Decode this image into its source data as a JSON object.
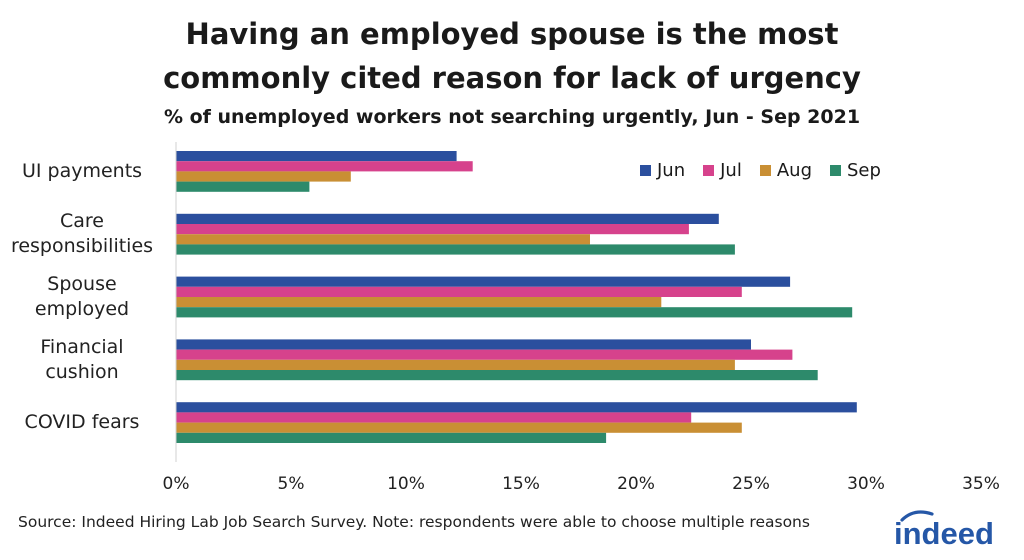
{
  "title_line1": "Having an employed spouse is the most",
  "title_line2": "commonly cited reason for lack of urgency",
  "subtitle": "% of unemployed workers not searching urgently, Jun - Sep 2021",
  "source": "Source: Indeed Hiring Lab Job Search Survey. Note: respondents were able to choose multiple reasons",
  "logo_text": "indeed",
  "colors": {
    "Jun": "#2b4f9e",
    "Jul": "#d6428c",
    "Aug": "#c98f34",
    "Sep": "#2d8a6b"
  },
  "chart_data": {
    "type": "bar",
    "orientation": "horizontal",
    "categories": [
      "UI payments",
      "Care responsibilities",
      "Spouse employed",
      "Financial cushion",
      "COVID fears"
    ],
    "category_lines": [
      [
        "UI payments"
      ],
      [
        "Care",
        "responsibilities"
      ],
      [
        "Spouse",
        "employed"
      ],
      [
        "Financial",
        "cushion"
      ],
      [
        "COVID fears"
      ]
    ],
    "series": [
      {
        "name": "Jun",
        "values": [
          12.2,
          23.6,
          26.7,
          25.0,
          29.6
        ]
      },
      {
        "name": "Jul",
        "values": [
          12.9,
          22.3,
          24.6,
          26.8,
          22.4
        ]
      },
      {
        "name": "Aug",
        "values": [
          7.6,
          18.0,
          21.1,
          24.3,
          24.6
        ]
      },
      {
        "name": "Sep",
        "values": [
          5.8,
          24.3,
          29.4,
          27.9,
          18.7
        ]
      }
    ],
    "xlim": [
      0,
      35
    ],
    "xticks": [
      0,
      5,
      10,
      15,
      20,
      25,
      30,
      35
    ],
    "xtick_labels": [
      "0%",
      "5%",
      "10%",
      "15%",
      "20%",
      "25%",
      "30%",
      "35%"
    ],
    "legend_position": "top-right",
    "grid": false
  }
}
